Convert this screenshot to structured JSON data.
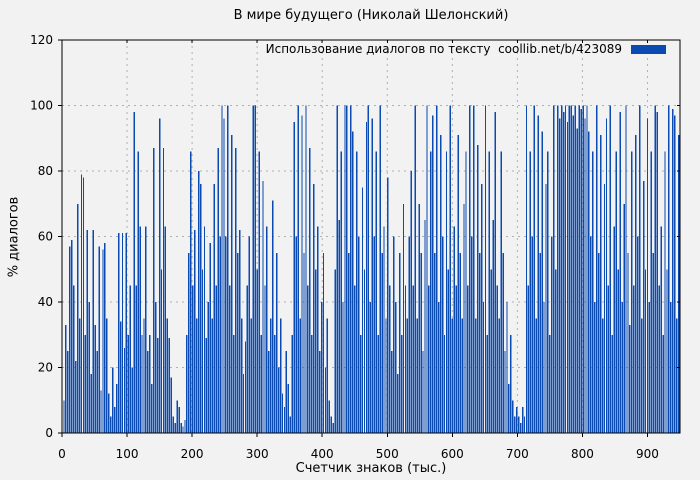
{
  "colors": {
    "bar": "#0b4ab0",
    "background": "#f2f2f2",
    "grid": "#b0b0b0",
    "axis": "#000000"
  },
  "chart_data": {
    "type": "bar",
    "title": "В мире будущего (Николай Шелонский)",
    "xlabel": "Счетчик знаков (тыс.)",
    "ylabel": "% диалогов",
    "xlim": [
      0,
      950
    ],
    "ylim": [
      0,
      120
    ],
    "x_ticks": [
      0,
      100,
      200,
      300,
      400,
      500,
      600,
      700,
      800,
      900
    ],
    "y_ticks": [
      0,
      20,
      40,
      60,
      80,
      100,
      120
    ],
    "grid": true,
    "legend": {
      "label": "Использование диалогов по тексту  coollib.net/b/423089",
      "position": "top-right"
    },
    "series": [
      {
        "name": "Использование диалогов по тексту  coollib.net/b/423089",
        "color": "#0b4ab0",
        "points": [
          [
            3,
            10
          ],
          [
            6,
            33
          ],
          [
            9,
            25
          ],
          [
            12,
            57
          ],
          [
            15,
            59
          ],
          [
            18,
            45
          ],
          [
            21,
            22
          ],
          [
            24,
            70
          ],
          [
            27,
            35
          ],
          [
            30,
            79
          ],
          [
            33,
            78
          ],
          [
            36,
            30
          ],
          [
            39,
            62
          ],
          [
            42,
            40
          ],
          [
            45,
            18
          ],
          [
            48,
            62
          ],
          [
            51,
            33
          ],
          [
            54,
            25
          ],
          [
            57,
            57
          ],
          [
            60,
            13
          ],
          [
            63,
            56
          ],
          [
            66,
            58
          ],
          [
            69,
            35
          ],
          [
            72,
            12
          ],
          [
            75,
            5
          ],
          [
            78,
            20
          ],
          [
            81,
            8
          ],
          [
            84,
            15
          ],
          [
            87,
            61
          ],
          [
            90,
            34
          ],
          [
            93,
            61
          ],
          [
            96,
            26
          ],
          [
            99,
            61
          ],
          [
            102,
            30
          ],
          [
            105,
            45
          ],
          [
            108,
            20
          ],
          [
            111,
            98
          ],
          [
            114,
            45
          ],
          [
            117,
            86
          ],
          [
            120,
            63
          ],
          [
            123,
            30
          ],
          [
            126,
            35
          ],
          [
            129,
            63
          ],
          [
            132,
            25
          ],
          [
            135,
            30
          ],
          [
            138,
            15
          ],
          [
            141,
            87
          ],
          [
            144,
            40
          ],
          [
            147,
            29
          ],
          [
            150,
            96
          ],
          [
            153,
            50
          ],
          [
            156,
            87
          ],
          [
            159,
            63
          ],
          [
            162,
            35
          ],
          [
            165,
            29
          ],
          [
            168,
            17
          ],
          [
            171,
            5
          ],
          [
            174,
            3
          ],
          [
            177,
            10
          ],
          [
            180,
            8
          ],
          [
            183,
            3
          ],
          [
            186,
            2
          ],
          [
            189,
            4
          ],
          [
            192,
            30
          ],
          [
            195,
            55
          ],
          [
            198,
            86
          ],
          [
            201,
            45
          ],
          [
            204,
            62
          ],
          [
            207,
            35
          ],
          [
            210,
            80
          ],
          [
            213,
            76
          ],
          [
            216,
            50
          ],
          [
            219,
            63
          ],
          [
            222,
            29
          ],
          [
            225,
            40
          ],
          [
            228,
            58
          ],
          [
            231,
            35
          ],
          [
            234,
            76
          ],
          [
            237,
            45
          ],
          [
            240,
            87
          ],
          [
            243,
            60
          ],
          [
            246,
            100
          ],
          [
            249,
            96
          ],
          [
            252,
            60
          ],
          [
            255,
            100
          ],
          [
            258,
            45
          ],
          [
            261,
            91
          ],
          [
            264,
            30
          ],
          [
            267,
            87
          ],
          [
            270,
            55
          ],
          [
            273,
            62
          ],
          [
            276,
            35
          ],
          [
            279,
            18
          ],
          [
            282,
            28
          ],
          [
            285,
            45
          ],
          [
            288,
            60
          ],
          [
            291,
            35
          ],
          [
            294,
            100
          ],
          [
            297,
            100
          ],
          [
            300,
            50
          ],
          [
            303,
            86
          ],
          [
            306,
            30
          ],
          [
            309,
            77
          ],
          [
            312,
            45
          ],
          [
            315,
            63
          ],
          [
            318,
            25
          ],
          [
            321,
            35
          ],
          [
            324,
            71
          ],
          [
            327,
            30
          ],
          [
            330,
            55
          ],
          [
            333,
            20
          ],
          [
            336,
            35
          ],
          [
            339,
            12
          ],
          [
            342,
            8
          ],
          [
            345,
            25
          ],
          [
            348,
            15
          ],
          [
            351,
            5
          ],
          [
            354,
            30
          ],
          [
            357,
            95
          ],
          [
            360,
            60
          ],
          [
            363,
            100
          ],
          [
            366,
            35
          ],
          [
            369,
            97
          ],
          [
            372,
            55
          ],
          [
            375,
            100
          ],
          [
            378,
            45
          ],
          [
            381,
            87
          ],
          [
            384,
            30
          ],
          [
            387,
            76
          ],
          [
            390,
            50
          ],
          [
            393,
            63
          ],
          [
            396,
            25
          ],
          [
            399,
            40
          ],
          [
            402,
            55
          ],
          [
            405,
            20
          ],
          [
            408,
            35
          ],
          [
            411,
            10
          ],
          [
            414,
            5
          ],
          [
            417,
            3
          ],
          [
            420,
            50
          ],
          [
            423,
            100
          ],
          [
            426,
            65
          ],
          [
            429,
            86
          ],
          [
            432,
            40
          ],
          [
            435,
            100
          ],
          [
            438,
            100
          ],
          [
            441,
            55
          ],
          [
            444,
            100
          ],
          [
            447,
            92
          ],
          [
            450,
            45
          ],
          [
            453,
            86
          ],
          [
            456,
            60
          ],
          [
            459,
            30
          ],
          [
            462,
            75
          ],
          [
            465,
            50
          ],
          [
            468,
            95
          ],
          [
            471,
            100
          ],
          [
            474,
            40
          ],
          [
            477,
            96
          ],
          [
            480,
            60
          ],
          [
            483,
            86
          ],
          [
            486,
            30
          ],
          [
            489,
            100
          ],
          [
            492,
            55
          ],
          [
            495,
            63
          ],
          [
            498,
            35
          ],
          [
            501,
            78
          ],
          [
            504,
            45
          ],
          [
            507,
            25
          ],
          [
            510,
            60
          ],
          [
            513,
            40
          ],
          [
            516,
            18
          ],
          [
            519,
            55
          ],
          [
            522,
            30
          ],
          [
            525,
            70
          ],
          [
            528,
            45
          ],
          [
            531,
            35
          ],
          [
            534,
            60
          ],
          [
            537,
            80
          ],
          [
            540,
            45
          ],
          [
            543,
            100
          ],
          [
            546,
            35
          ],
          [
            549,
            70
          ],
          [
            552,
            55
          ],
          [
            555,
            25
          ],
          [
            558,
            65
          ],
          [
            561,
            100
          ],
          [
            564,
            45
          ],
          [
            567,
            86
          ],
          [
            570,
            97
          ],
          [
            573,
            55
          ],
          [
            576,
            100
          ],
          [
            579,
            40
          ],
          [
            582,
            91
          ],
          [
            585,
            60
          ],
          [
            588,
            30
          ],
          [
            591,
            86
          ],
          [
            594,
            50
          ],
          [
            597,
            100
          ],
          [
            600,
            35
          ],
          [
            603,
            63
          ],
          [
            606,
            45
          ],
          [
            609,
            91
          ],
          [
            612,
            55
          ],
          [
            615,
            35
          ],
          [
            618,
            70
          ],
          [
            621,
            86
          ],
          [
            624,
            45
          ],
          [
            627,
            100
          ],
          [
            630,
            60
          ],
          [
            633,
            100
          ],
          [
            636,
            35
          ],
          [
            639,
            88
          ],
          [
            642,
            55
          ],
          [
            645,
            76
          ],
          [
            648,
            40
          ],
          [
            651,
            100
          ],
          [
            654,
            30
          ],
          [
            657,
            86
          ],
          [
            660,
            50
          ],
          [
            663,
            65
          ],
          [
            666,
            98
          ],
          [
            669,
            45
          ],
          [
            672,
            35
          ],
          [
            675,
            86
          ],
          [
            678,
            55
          ],
          [
            681,
            25
          ],
          [
            684,
            40
          ],
          [
            687,
            15
          ],
          [
            690,
            30
          ],
          [
            693,
            10
          ],
          [
            696,
            5
          ],
          [
            699,
            8
          ],
          [
            702,
            5
          ],
          [
            705,
            3
          ],
          [
            708,
            8
          ],
          [
            711,
            5
          ],
          [
            714,
            100
          ],
          [
            717,
            45
          ],
          [
            720,
            86
          ],
          [
            723,
            60
          ],
          [
            726,
            100
          ],
          [
            729,
            35
          ],
          [
            732,
            97
          ],
          [
            735,
            55
          ],
          [
            738,
            92
          ],
          [
            741,
            40
          ],
          [
            744,
            76
          ],
          [
            747,
            86
          ],
          [
            750,
            30
          ],
          [
            753,
            60
          ],
          [
            756,
            100
          ],
          [
            759,
            50
          ],
          [
            762,
            100
          ],
          [
            765,
            96
          ],
          [
            768,
            100
          ],
          [
            771,
            98
          ],
          [
            774,
            100
          ],
          [
            777,
            95
          ],
          [
            780,
            100
          ],
          [
            783,
            100
          ],
          [
            786,
            97
          ],
          [
            789,
            100
          ],
          [
            792,
            93
          ],
          [
            795,
            100
          ],
          [
            798,
            99
          ],
          [
            801,
            100
          ],
          [
            804,
            96
          ],
          [
            807,
            100
          ],
          [
            810,
            92
          ],
          [
            813,
            60
          ],
          [
            816,
            86
          ],
          [
            819,
            40
          ],
          [
            822,
            100
          ],
          [
            825,
            55
          ],
          [
            828,
            91
          ],
          [
            831,
            35
          ],
          [
            834,
            76
          ],
          [
            837,
            96
          ],
          [
            840,
            45
          ],
          [
            843,
            100
          ],
          [
            846,
            30
          ],
          [
            849,
            63
          ],
          [
            852,
            86
          ],
          [
            855,
            50
          ],
          [
            858,
            98
          ],
          [
            861,
            40
          ],
          [
            864,
            70
          ],
          [
            867,
            100
          ],
          [
            870,
            55
          ],
          [
            873,
            33
          ],
          [
            876,
            86
          ],
          [
            879,
            45
          ],
          [
            882,
            91
          ],
          [
            885,
            60
          ],
          [
            888,
            100
          ],
          [
            891,
            35
          ],
          [
            894,
            77
          ],
          [
            897,
            50
          ],
          [
            900,
            96
          ],
          [
            903,
            40
          ],
          [
            906,
            86
          ],
          [
            909,
            55
          ],
          [
            912,
            100
          ],
          [
            915,
            98
          ],
          [
            918,
            45
          ],
          [
            921,
            63
          ],
          [
            924,
            30
          ],
          [
            927,
            86
          ],
          [
            930,
            50
          ],
          [
            933,
            100
          ],
          [
            936,
            40
          ],
          [
            939,
            99
          ],
          [
            942,
            97
          ],
          [
            945,
            35
          ],
          [
            948,
            91
          ]
        ]
      }
    ]
  }
}
